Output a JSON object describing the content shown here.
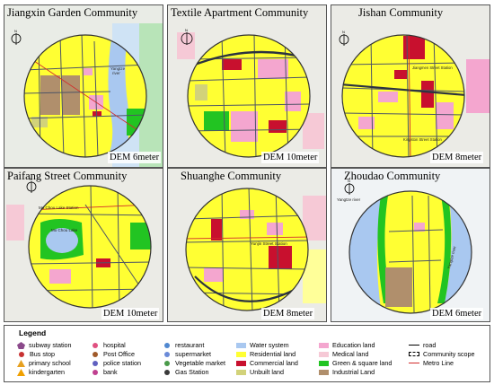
{
  "colors": {
    "residential": "#ffff33",
    "water": "#a9c8f0",
    "green": "#22c422",
    "commercial": "#c8102e",
    "education": "#f4a6cf",
    "medical": "#f6c9d6",
    "unbuilt": "#d2d27a",
    "industrial": "#b08f6c",
    "outside": "#e8ece8",
    "road": "#4d5566",
    "metro": "#d22b2b"
  },
  "panels": [
    {
      "title": "Jiangxin Garden Community",
      "dem": "DEM 6meter",
      "labels": [
        "Yangtze",
        "river"
      ]
    },
    {
      "title": "Textile Apartment Community",
      "dem": "DEM 10meter",
      "labels": []
    },
    {
      "title": "Jishan Community",
      "dem": "DEM 8meter",
      "labels": [
        "Jiangmen Street Station",
        "Kingston Street Station"
      ]
    },
    {
      "title": "Paifang Street Community",
      "dem": "DEM 10meter",
      "labels": [
        "Mo Chou Lake Station",
        "Mo Chou Lake"
      ]
    },
    {
      "title": "Shuanghe Community",
      "dem": "DEM 8meter",
      "labels": [
        "Yunjin Street Station"
      ]
    },
    {
      "title": "Zhoudao Community",
      "dem": "DEM 6meter",
      "labels": [
        "Yangtze river",
        "Yangtze river"
      ]
    }
  ],
  "legend": {
    "title": "Legend",
    "poi": [
      {
        "label": "subway station",
        "color": "#8b4a8b",
        "shape": "pentagon"
      },
      {
        "label": "Bus stop",
        "color": "#c83232",
        "shape": "dot"
      },
      {
        "label": "primary school",
        "color": "#e6a020",
        "shape": "dot"
      },
      {
        "label": "kindergarten",
        "color": "#f0a000",
        "shape": "triangle"
      },
      {
        "label": "hospital",
        "color": "#e05080",
        "shape": "dot"
      },
      {
        "label": "Post Office",
        "color": "#a05a2a",
        "shape": "dot"
      },
      {
        "label": "police station",
        "color": "#6060c0",
        "shape": "dot"
      },
      {
        "label": "bank",
        "color": "#c04090",
        "shape": "dot"
      },
      {
        "label": "restaurant",
        "color": "#5088d0",
        "shape": "dot"
      },
      {
        "label": "supermarket",
        "color": "#6a8ad8",
        "shape": "dot"
      },
      {
        "label": "Vegetable market",
        "color": "#4a9a4a",
        "shape": "dot"
      },
      {
        "label": "Gas Station",
        "color": "#3a3a3a",
        "shape": "dot"
      }
    ],
    "landuse": [
      {
        "label": "Water system",
        "color": "#a9c8f0"
      },
      {
        "label": "Residential land",
        "color": "#ffff33"
      },
      {
        "label": "Commercial land",
        "color": "#c8102e"
      },
      {
        "label": "Unbuilt land",
        "color": "#d2d27a"
      },
      {
        "label": "Education land",
        "color": "#f4a6cf"
      },
      {
        "label": "Medical land",
        "color": "#f6c9d6"
      },
      {
        "label": "Green & square land",
        "color": "#22c422"
      },
      {
        "label": "Industrial Land",
        "color": "#b08f6c"
      }
    ],
    "lines": [
      {
        "label": "road",
        "style": "solid"
      },
      {
        "label": "Community scope",
        "style": "dashed"
      },
      {
        "label": "Metro Line",
        "style": "metro"
      }
    ]
  }
}
